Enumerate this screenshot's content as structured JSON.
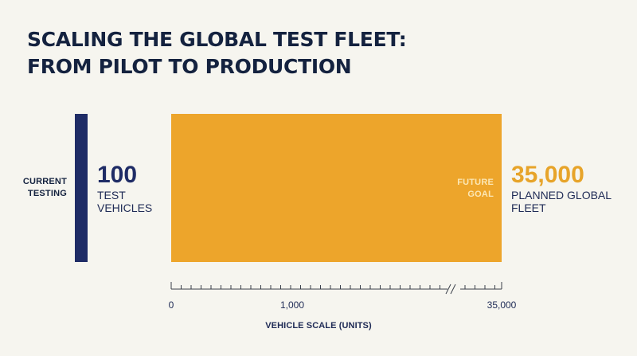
{
  "title": {
    "line1": "SCALING THE GLOBAL TEST FLEET:",
    "line2": "FROM PILOT TO PRODUCTION"
  },
  "colors": {
    "current": "#1f2c66",
    "future": "#eda52b",
    "axis": "#3a3f4a"
  },
  "chart_data": {
    "type": "bar",
    "orientation": "horizontal",
    "title": "SCALING THE GLOBAL TEST FLEET: FROM PILOT TO PRODUCTION",
    "xlabel": "VEHICLE SCALE (UNITS)",
    "ylabel": "",
    "axis_break": true,
    "categories": [
      "CURRENT TESTING",
      "FUTURE GOAL"
    ],
    "values": [
      100,
      35000
    ],
    "value_labels": [
      "100",
      "35,000"
    ],
    "descriptions": [
      "TEST VEHICLES",
      "PLANNED GLOBAL FLEET"
    ],
    "x_ticks": [
      "0",
      "1,000",
      "35,000"
    ],
    "grid": false,
    "legend": "none"
  }
}
